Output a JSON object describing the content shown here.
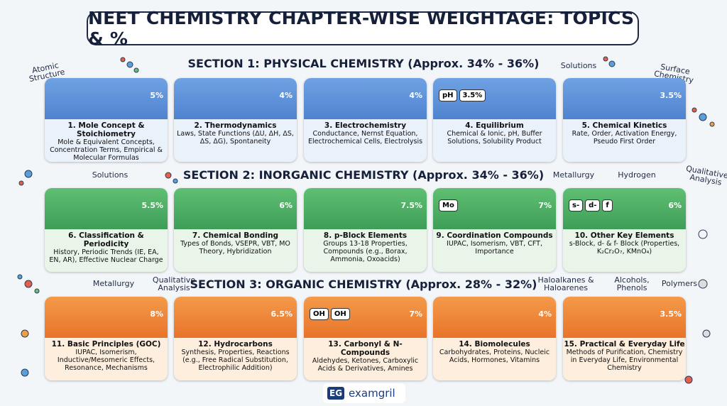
{
  "title": "NEET CHEMISTRY CHAPTER-WISE WEIGHTAGE: TOPICS & %",
  "sections": [
    {
      "heading": "SECTION 1: PHYSICAL CHEMISTRY (Approx. 34% - 36%)",
      "side_labels": [
        "Atomic Structure",
        "Solutions",
        "Surface Chemistry"
      ],
      "cards": [
        {
          "title": "1. Mole Concept & Stoichiometry",
          "description": "Mole & Equivalent Concepts, Concentration Terms, Empirical & Molecular Formulas",
          "percent": "5%",
          "icon_labels": []
        },
        {
          "title": "2. Thermodynamics",
          "description": "Laws, State Functions (ΔU, ΔH, ΔS, ΔS, ΔG), Spontaneity",
          "percent": "4%",
          "icon_labels": []
        },
        {
          "title": "3. Electrochemistry",
          "description": "Conductance, Nernst Equation, Electrochemical Cells, Electrolysis",
          "percent": "4%",
          "icon_labels": []
        },
        {
          "title": "4. Equilibrium",
          "description": "Chemical & Ionic, pH, Buffer Solutions, Solubility Product",
          "percent": "",
          "icon_labels": [
            "pH",
            "3.5%"
          ]
        },
        {
          "title": "5. Chemical Kinetics",
          "description": "Rate, Order, Activation Energy, Pseudo First Order",
          "percent": "3.5%",
          "icon_labels": []
        }
      ]
    },
    {
      "heading": "SECTION 2: INORGANIC CHEMISTRY (Approx. 34% - 36%)",
      "side_labels": [
        "Solutions",
        "Metallurgy",
        "Hydrogen",
        "Qualitative Analysis"
      ],
      "cards": [
        {
          "title": "6. Classification & Periodicity",
          "description": "History, Periodic Trends (IE, EA, EN, AR), Effective Nuclear Charge",
          "percent": "5.5%",
          "icon_labels": []
        },
        {
          "title": "7. Chemical Bonding",
          "description": "Types of Bonds, VSEPR, VBT, MO Theory, Hybridization",
          "percent": "6%",
          "icon_labels": []
        },
        {
          "title": "8. p-Block Elements",
          "description": "Groups 13-18 Properties, Compounds (e.g., Borax, Ammonia, Oxoacids)",
          "percent": "7.5%",
          "icon_labels": []
        },
        {
          "title": "9. Coordination Compounds",
          "description": "IUPAC, Isomerism, VBT, CFT, Importance",
          "percent": "7%",
          "icon_labels": [
            "Mo"
          ]
        },
        {
          "title": "10. Other Key Elements",
          "description": "s-Block, d- & f- Block (Properties, K₂Cr₂O₇, KMnO₄)",
          "percent": "6%",
          "icon_labels": [
            "s-",
            "d-",
            "f"
          ]
        }
      ]
    },
    {
      "heading": "SECTION 3: ORGANIC CHEMISTRY (Approx. 28% - 32%)",
      "side_labels": [
        "Metallurgy",
        "Qualitative Analysis",
        "Haloalkanes & Haloarenes",
        "Alcohols, Phenols",
        "Polymers"
      ],
      "cards": [
        {
          "title": "11. Basic Principles (GOC)",
          "description": "IUPAC, Isomerism, Inductive/Mesomeric Effects, Resonance, Mechanisms",
          "percent": "8%",
          "icon_labels": []
        },
        {
          "title": "12. Hydrocarbons",
          "description": "Synthesis, Properties, Reactions (e.g., Free Radical Substitution, Electrophilic Addition)",
          "percent": "6.5%",
          "icon_labels": []
        },
        {
          "title": "13. Carbonyl & N-Compounds",
          "description": "Aldehydes, Ketones, Carboxylic Acids & Derivatives, Amines",
          "percent": "7%",
          "icon_labels": [
            "OH",
            "OH"
          ]
        },
        {
          "title": "14. Biomolecules",
          "description": "Carbohydrates, Proteins, Nucleic Acids, Hormones, Vitamins",
          "percent": "4%",
          "icon_labels": []
        },
        {
          "title": "15. Practical & Everyday Life",
          "description": "Methods of Purification, Chemistry in Everyday Life, Environmental Chemistry",
          "percent": "3.5%",
          "icon_labels": []
        }
      ]
    }
  ],
  "footer": {
    "logo": "EG",
    "brand": "examgril"
  }
}
